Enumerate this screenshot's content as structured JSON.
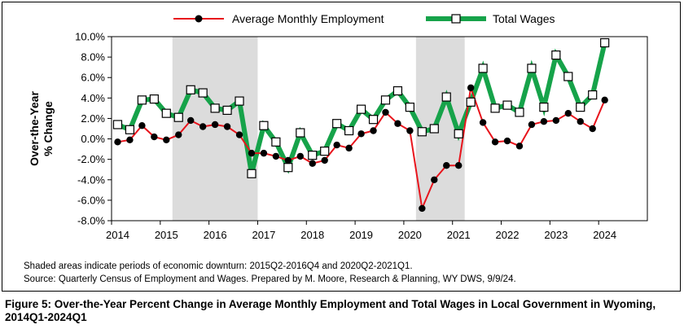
{
  "chart_data": {
    "type": "line",
    "ylabel": [
      "Over-the-Year",
      "% Change"
    ],
    "ylim": [
      -8,
      10
    ],
    "yticks": [
      "-8.0%",
      "-6.0%",
      "-4.0%",
      "-2.0%",
      "0.0%",
      "2.0%",
      "4.0%",
      "6.0%",
      "8.0%",
      "10.0%"
    ],
    "xticks": [
      "2014",
      "2015",
      "2016",
      "2017",
      "2018",
      "2019",
      "2020",
      "2021",
      "2022",
      "2023",
      "2024"
    ],
    "x": [
      "2014Q1",
      "2014Q2",
      "2014Q3",
      "2014Q4",
      "2015Q1",
      "2015Q2",
      "2015Q3",
      "2015Q4",
      "2016Q1",
      "2016Q2",
      "2016Q3",
      "2016Q4",
      "2017Q1",
      "2017Q2",
      "2017Q3",
      "2017Q4",
      "2018Q1",
      "2018Q2",
      "2018Q3",
      "2018Q4",
      "2019Q1",
      "2019Q2",
      "2019Q3",
      "2019Q4",
      "2020Q1",
      "2020Q2",
      "2020Q3",
      "2020Q4",
      "2021Q1",
      "2021Q2",
      "2021Q3",
      "2021Q4",
      "2022Q1",
      "2022Q2",
      "2022Q3",
      "2022Q4",
      "2023Q1",
      "2023Q2",
      "2023Q3",
      "2023Q4",
      "2024Q1"
    ],
    "recessions": [
      [
        "2015Q2",
        "2016Q4"
      ],
      [
        "2020Q2",
        "2021Q1"
      ]
    ],
    "series": [
      {
        "name": "Average Monthly Employment",
        "color": "#e8141c",
        "marker": "filled-circle",
        "values": [
          -0.3,
          -0.1,
          1.3,
          0.2,
          -0.1,
          0.4,
          1.8,
          1.2,
          1.4,
          1.2,
          0.4,
          -1.4,
          -1.4,
          -1.7,
          -2.1,
          -1.7,
          -2.4,
          -2.1,
          -0.6,
          -0.9,
          0.5,
          0.8,
          2.6,
          1.5,
          0.8,
          -6.8,
          -4.0,
          -2.6,
          -2.6,
          5.0,
          1.6,
          -0.3,
          -0.2,
          -0.7,
          1.4,
          1.7,
          1.8,
          2.5,
          1.7,
          1.0,
          3.8
        ]
      },
      {
        "name": "Total Wages",
        "color": "#16a34a",
        "marker": "open-square",
        "values": [
          1.4,
          0.9,
          3.8,
          3.9,
          2.5,
          2.1,
          4.8,
          4.5,
          3.0,
          2.8,
          3.7,
          -3.4,
          1.3,
          -0.3,
          -2.8,
          0.6,
          -1.6,
          -1.2,
          1.5,
          0.8,
          2.9,
          1.9,
          3.8,
          4.7,
          3.1,
          0.7,
          1.0,
          4.1,
          0.5,
          3.6,
          6.9,
          3.0,
          3.3,
          2.6,
          6.9,
          3.1,
          8.2,
          6.1,
          3.1,
          4.3,
          9.4
        ]
      }
    ],
    "legend_position": "top"
  },
  "notes": {
    "line1": "Shaded areas indicate periods of economic downturn: 2015Q2-2016Q4 and 2020Q2-2021Q1.",
    "line2": "Source: Quarterly Census of Employment and Wages. Prepared by M. Moore, Research & Planning, WY DWS, 9/9/24."
  },
  "caption": "Figure 5: Over-the-Year Percent Change in Average Monthly Employment and Total Wages in Local Government in Wyoming, 2014Q1-2024Q1"
}
